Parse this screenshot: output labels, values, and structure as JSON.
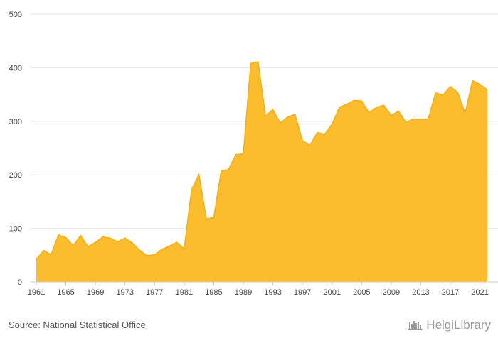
{
  "chart_data": {
    "type": "area",
    "x": [
      1961,
      1962,
      1963,
      1964,
      1965,
      1966,
      1967,
      1968,
      1969,
      1970,
      1971,
      1972,
      1973,
      1974,
      1975,
      1976,
      1977,
      1978,
      1979,
      1980,
      1981,
      1982,
      1983,
      1984,
      1985,
      1986,
      1987,
      1988,
      1989,
      1990,
      1991,
      1992,
      1993,
      1994,
      1995,
      1996,
      1997,
      1998,
      1999,
      2000,
      2001,
      2002,
      2003,
      2004,
      2005,
      2006,
      2007,
      2008,
      2009,
      2010,
      2011,
      2012,
      2013,
      2014,
      2015,
      2016,
      2017,
      2018,
      2019,
      2020,
      2021,
      2022
    ],
    "series": [
      {
        "values": [
          42,
          59,
          51,
          88,
          83,
          68,
          87,
          66,
          74,
          84,
          82,
          75,
          82,
          73,
          59,
          49,
          51,
          61,
          67,
          74,
          62,
          172,
          201,
          118,
          120,
          207,
          210,
          238,
          239,
          408,
          411,
          310,
          322,
          297,
          308,
          313,
          264,
          255,
          279,
          276,
          295,
          326,
          332,
          339,
          338,
          316,
          326,
          330,
          311,
          319,
          298,
          304,
          303,
          304,
          353,
          349,
          365,
          354,
          315,
          376,
          369,
          359
        ]
      }
    ],
    "xticks": [
      "1961",
      "1965",
      "1969",
      "1973",
      "1977",
      "1981",
      "1985",
      "1989",
      "1993",
      "1997",
      "2001",
      "2005",
      "2009",
      "2013",
      "2017",
      "2021"
    ],
    "yticks": [
      "0",
      "100",
      "200",
      "300",
      "400",
      "500"
    ],
    "ylim": [
      0,
      500
    ],
    "xlim": [
      1961,
      2022
    ],
    "grid": "horizontal",
    "colors": {
      "fill": "#fbbc2e",
      "stroke": "#f0b01e"
    }
  },
  "footer": {
    "source": "Source: National Statistical Office",
    "logo": "HelgiLibrary"
  }
}
